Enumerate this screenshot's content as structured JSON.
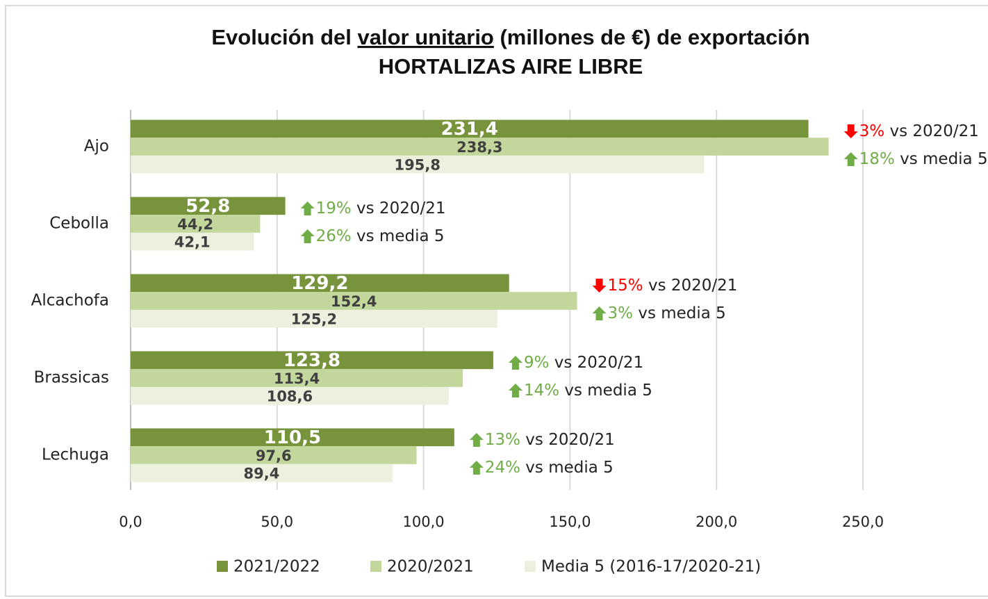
{
  "chart_data": {
    "type": "bar",
    "orientation": "horizontal",
    "title": {
      "before": "Evolución del ",
      "underlined": "valor unitario",
      "after": " (millones de €) de exportación"
    },
    "subtitle": "HORTALIZAS AIRE LIBRE",
    "categories": [
      "Ajo",
      "Cebolla",
      "Alcachofa",
      "Brassicas",
      "Lechuga"
    ],
    "series": [
      {
        "name": "2021/2022",
        "color": "#77933c",
        "label_color": "#ffffff",
        "values": [
          231.4,
          52.8,
          129.2,
          123.8,
          110.5
        ],
        "value_labels": [
          "231,4",
          "52,8",
          "129,2",
          "123,8",
          "110,5"
        ]
      },
      {
        "name": "2020/2021",
        "color": "#c3d69b",
        "label_color": "#404040",
        "values": [
          238.3,
          44.2,
          152.4,
          113.4,
          97.6
        ],
        "value_labels": [
          "238,3",
          "44,2",
          "152,4",
          "113,4",
          "97,6"
        ]
      },
      {
        "name": "Media 5 (2016-17/2020-21)",
        "color": "#ebf1de",
        "label_color": "#404040",
        "values": [
          195.8,
          42.1,
          125.2,
          108.6,
          89.4
        ],
        "value_labels": [
          "195,8",
          "42,1",
          "125,2",
          "108,6",
          "89,4"
        ]
      }
    ],
    "xlim": [
      0,
      250
    ],
    "xticks": [
      {
        "value": 0,
        "label": "0,0"
      },
      {
        "value": 50,
        "label": "50,0"
      },
      {
        "value": 100,
        "label": "100,0"
      },
      {
        "value": 150,
        "label": "150,0"
      },
      {
        "value": 200,
        "label": "200,0"
      },
      {
        "value": 250,
        "label": "250,0"
      }
    ],
    "grid": true,
    "legend": "bottom",
    "direction_colors": {
      "up": "#70ad47",
      "down": "#ff0000"
    },
    "annotations": [
      [
        {
          "direction": "down",
          "percent": "3%",
          "text": " vs 2020/21"
        },
        {
          "direction": "up",
          "percent": "18%",
          "text": " vs media 5"
        }
      ],
      [
        {
          "direction": "up",
          "percent": "19%",
          "text": " vs 2020/21"
        },
        {
          "direction": "up",
          "percent": "26%",
          "text": " vs media 5"
        }
      ],
      [
        {
          "direction": "down",
          "percent": "15%",
          "text": " vs 2020/21"
        },
        {
          "direction": "up",
          "percent": "3%",
          "text": " vs media 5"
        }
      ],
      [
        {
          "direction": "up",
          "percent": "9%",
          "text": " vs 2020/21"
        },
        {
          "direction": "up",
          "percent": "14%",
          "text": " vs media 5"
        }
      ],
      [
        {
          "direction": "up",
          "percent": "13%",
          "text": " vs 2020/21"
        },
        {
          "direction": "up",
          "percent": "24%",
          "text": " vs media 5"
        }
      ]
    ]
  }
}
